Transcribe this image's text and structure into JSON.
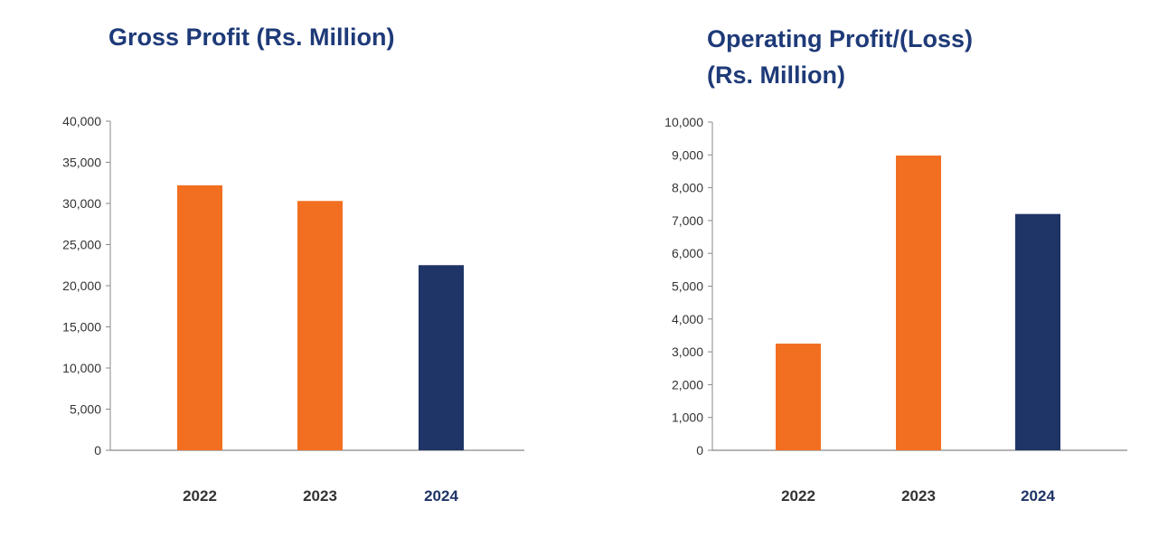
{
  "charts": {
    "gross": {
      "title": "Gross Profit (Rs. Million)"
    },
    "operating": {
      "title_line1": "Operating Profit/(Loss)",
      "title_line2": "(Rs. Million)"
    }
  },
  "chart_data": [
    {
      "type": "bar",
      "title": "Gross Profit (Rs. Million)",
      "categories": [
        "2022",
        "2023",
        "2024"
      ],
      "values": [
        32200,
        30300,
        22500
      ],
      "bar_colors": [
        "#f26f21",
        "#f26f21",
        "#1f3467"
      ],
      "category_label_colors": [
        "#333333",
        "#333333",
        "#1f3467"
      ],
      "ylim": [
        0,
        40000
      ],
      "yticks": [
        0,
        5000,
        10000,
        15000,
        20000,
        25000,
        30000,
        35000,
        40000
      ],
      "ytick_labels": [
        "0",
        "5,000",
        "10,000",
        "15,000",
        "20,000",
        "25,000",
        "30,000",
        "35,000",
        "40,000"
      ],
      "grid": false,
      "legend": "none"
    },
    {
      "type": "bar",
      "title": "Operating Profit/(Loss) (Rs. Million)",
      "categories": [
        "2022",
        "2023",
        "2024"
      ],
      "values": [
        3250,
        8980,
        7200
      ],
      "bar_colors": [
        "#f26f21",
        "#f26f21",
        "#1f3467"
      ],
      "category_label_colors": [
        "#333333",
        "#333333",
        "#1f3467"
      ],
      "ylim": [
        0,
        10000
      ],
      "yticks": [
        0,
        1000,
        2000,
        3000,
        4000,
        5000,
        6000,
        7000,
        8000,
        9000,
        10000
      ],
      "ytick_labels": [
        "0",
        "1,000",
        "2,000",
        "3,000",
        "4,000",
        "5,000",
        "6,000",
        "7,000",
        "8,000",
        "9,000",
        "10,000"
      ],
      "grid": false,
      "legend": "none"
    }
  ]
}
